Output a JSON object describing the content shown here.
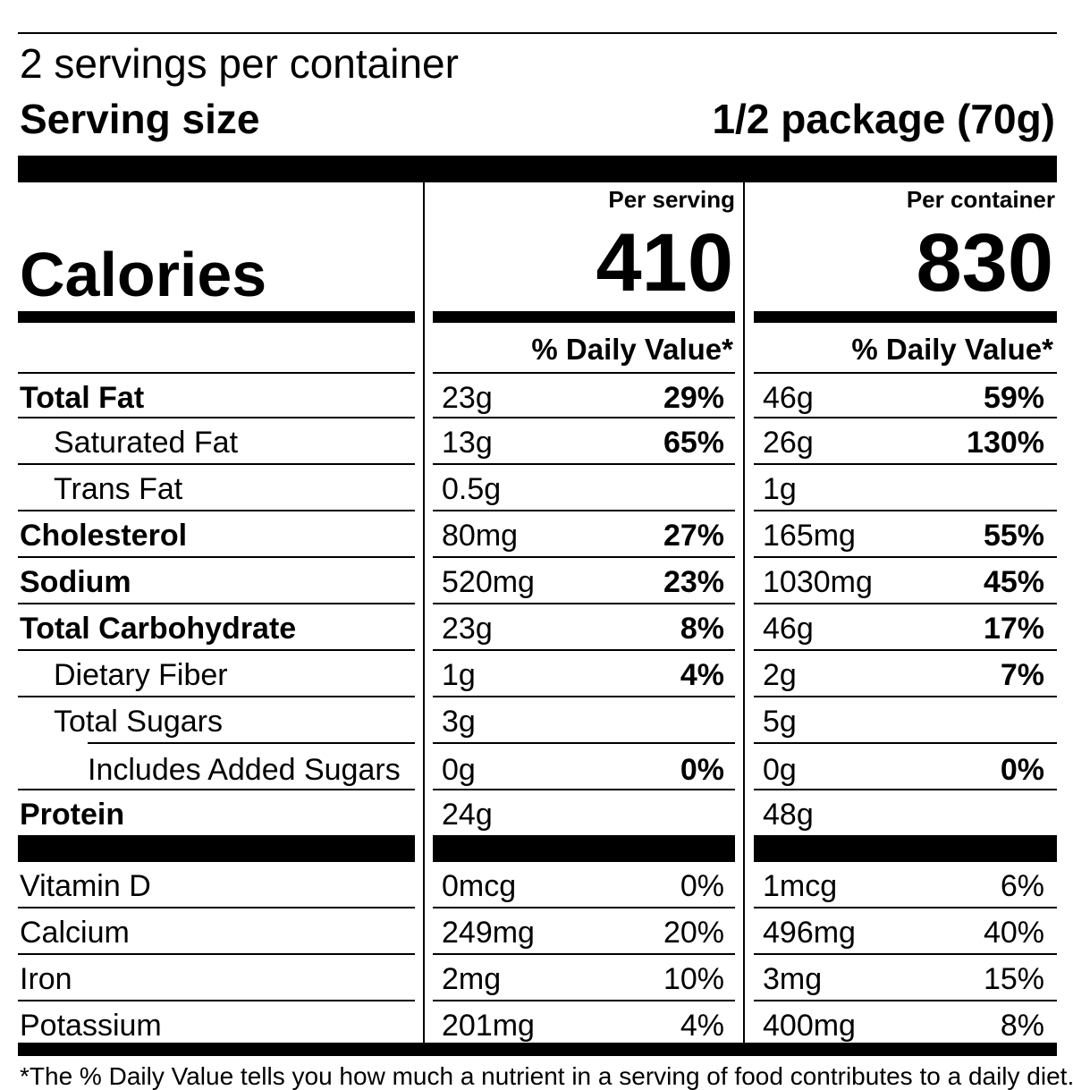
{
  "servings_per_container": "2 servings per container",
  "serving_size_label": "Serving size",
  "serving_size_value": "1/2 package (70g)",
  "calories_label": "Calories",
  "per_serving": {
    "header": "Per serving",
    "calories": "410",
    "dv_header": "% Daily Value*"
  },
  "per_container": {
    "header": "Per container",
    "calories": "830",
    "dv_header": "% Daily Value*"
  },
  "nutrients": [
    {
      "name": "Total Fat",
      "serving": "23g",
      "serving_dv": "29%",
      "container": "46g",
      "container_dv": "59%"
    },
    {
      "name": "Saturated Fat",
      "serving": "13g",
      "serving_dv": "65%",
      "container": "26g",
      "container_dv": "130%"
    },
    {
      "name": "Trans Fat",
      "serving": "0.5g",
      "serving_dv": "",
      "container": "1g",
      "container_dv": ""
    },
    {
      "name": "Cholesterol",
      "serving": "80mg",
      "serving_dv": "27%",
      "container": "165mg",
      "container_dv": "55%"
    },
    {
      "name": "Sodium",
      "serving": "520mg",
      "serving_dv": "23%",
      "container": "1030mg",
      "container_dv": "45%"
    },
    {
      "name": "Total Carbohydrate",
      "serving": "23g",
      "serving_dv": "8%",
      "container": "46g",
      "container_dv": "17%"
    },
    {
      "name": "Dietary Fiber",
      "serving": "1g",
      "serving_dv": "4%",
      "container": "2g",
      "container_dv": "7%"
    },
    {
      "name": "Total Sugars",
      "serving": "3g",
      "serving_dv": "",
      "container": "5g",
      "container_dv": ""
    },
    {
      "name": "Includes Added Sugars",
      "serving": "0g",
      "serving_dv": "0%",
      "container": "0g",
      "container_dv": "0%"
    },
    {
      "name": "Protein",
      "serving": "24g",
      "serving_dv": "",
      "container": "48g",
      "container_dv": ""
    }
  ],
  "vitamins": [
    {
      "name": "Vitamin D",
      "serving": "0mcg",
      "serving_dv": "0%",
      "container": "1mcg",
      "container_dv": "6%"
    },
    {
      "name": "Calcium",
      "serving": "249mg",
      "serving_dv": "20%",
      "container": "496mg",
      "container_dv": "40%"
    },
    {
      "name": "Iron",
      "serving": "2mg",
      "serving_dv": "10%",
      "container": "3mg",
      "container_dv": "15%"
    },
    {
      "name": "Potassium",
      "serving": "201mg",
      "serving_dv": "4%",
      "container": "400mg",
      "container_dv": "8%"
    }
  ],
  "footnote": "*The % Daily Value tells you how much a nutrient in a serving of food contributes to a daily diet."
}
